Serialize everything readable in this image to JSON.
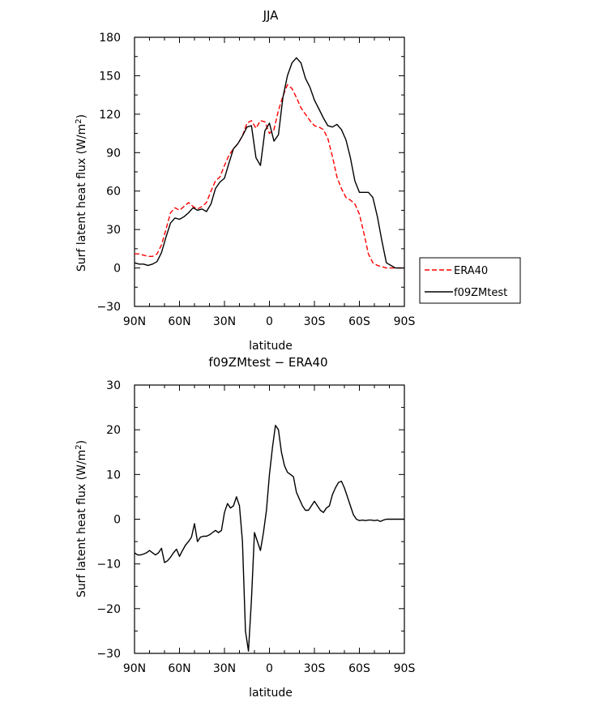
{
  "chart_data": [
    {
      "type": "line",
      "title": "JJA",
      "xlabel": "latitude",
      "ylabel_main": "Surf latent heat flux (W/m",
      "ylabel_sup": "2",
      "ylabel_tail": ")",
      "xlim": [
        90,
        -90
      ],
      "ylim": [
        -30,
        180
      ],
      "xticks": [
        90,
        60,
        30,
        0,
        -30,
        -60,
        -90
      ],
      "xtick_labels": [
        "90N",
        "60N",
        "30N",
        "0",
        "30S",
        "60S",
        "90S"
      ],
      "yticks": [
        -30,
        0,
        30,
        60,
        90,
        120,
        150,
        180
      ],
      "ytick_labels": [
        "−30",
        "0",
        "30",
        "60",
        "90",
        "120",
        "150",
        "180"
      ],
      "legend": {
        "placement": "right",
        "entries": [
          "ERA40",
          "f09ZMtest"
        ]
      },
      "series": [
        {
          "name": "ERA40",
          "color": "#ff0000",
          "dash": "dashed",
          "x": [
            90,
            87,
            84,
            81,
            78,
            75,
            72,
            69,
            66,
            63,
            60,
            57,
            54,
            51,
            48,
            45,
            42,
            39,
            36,
            33,
            30,
            27,
            24,
            21,
            18,
            15,
            12,
            9,
            6,
            3,
            0,
            -3,
            -6,
            -9,
            -12,
            -15,
            -18,
            -21,
            -24,
            -27,
            -30,
            -33,
            -36,
            -39,
            -42,
            -45,
            -48,
            -51,
            -54,
            -57,
            -60,
            -63,
            -66,
            -69,
            -72,
            -75,
            -78,
            -81,
            -84,
            -87,
            -90
          ],
          "y": [
            11,
            11,
            10,
            9,
            9,
            11,
            18,
            30,
            43,
            47,
            45,
            48,
            51,
            48,
            46,
            48,
            51,
            60,
            68,
            71,
            80,
            88,
            93,
            97,
            103,
            113,
            115,
            109,
            115,
            114,
            105,
            108,
            123,
            134,
            143,
            140,
            133,
            125,
            120,
            115,
            111,
            110,
            108,
            101,
            87,
            71,
            62,
            55,
            53,
            50,
            42,
            27,
            11,
            4,
            2,
            1,
            0,
            0,
            0,
            0,
            0
          ]
        },
        {
          "name": "f09ZMtest",
          "color": "#000000",
          "dash": "solid",
          "x": [
            90,
            87,
            84,
            81,
            78,
            75,
            72,
            69,
            66,
            63,
            60,
            57,
            54,
            51,
            48,
            45,
            42,
            39,
            36,
            33,
            30,
            27,
            24,
            21,
            18,
            15,
            12,
            9,
            6,
            3,
            0,
            -3,
            -6,
            -9,
            -12,
            -15,
            -18,
            -21,
            -24,
            -27,
            -30,
            -33,
            -36,
            -39,
            -42,
            -45,
            -48,
            -51,
            -54,
            -57,
            -60,
            -63,
            -66,
            -69,
            -72,
            -75,
            -78,
            -81,
            -84,
            -87,
            -90
          ],
          "y": [
            4,
            3,
            3,
            2,
            3,
            5,
            12,
            24,
            35,
            39,
            38,
            40,
            43,
            47,
            45,
            46,
            44,
            50,
            62,
            67,
            70,
            82,
            93,
            97,
            103,
            110,
            111,
            86,
            80,
            107,
            113,
            99,
            104,
            133,
            150,
            160,
            164,
            160,
            148,
            141,
            131,
            124,
            117,
            111,
            110,
            112,
            108,
            100,
            86,
            68,
            59,
            59,
            59,
            55,
            40,
            21,
            4,
            2,
            0,
            0,
            0
          ]
        }
      ]
    },
    {
      "type": "line",
      "title": "f09ZMtest − ERA40",
      "xlabel": "latitude",
      "ylabel_main": "Surf latent heat flux (W/m",
      "ylabel_sup": "2",
      "ylabel_tail": ")",
      "xlim": [
        90,
        -90
      ],
      "ylim": [
        -30,
        30
      ],
      "xticks": [
        90,
        60,
        30,
        0,
        -30,
        -60,
        -90
      ],
      "xtick_labels": [
        "90N",
        "60N",
        "30N",
        "0",
        "30S",
        "60S",
        "90S"
      ],
      "yticks": [
        -30,
        -20,
        -10,
        0,
        10,
        20,
        30
      ],
      "ytick_labels": [
        "−30",
        "−20",
        "−10",
        "0",
        "10",
        "20",
        "30"
      ],
      "series": [
        {
          "color": "#000000",
          "dash": "solid",
          "x": [
            90,
            88,
            86,
            84,
            82,
            80,
            78,
            76,
            74,
            72,
            70,
            68,
            66,
            64,
            62,
            60,
            58,
            56,
            54,
            52,
            50,
            48,
            46,
            44,
            42,
            40,
            38,
            36,
            34,
            32,
            30,
            28,
            26,
            24,
            22,
            20,
            18,
            16,
            14,
            12,
            10,
            8,
            6,
            4,
            2,
            0,
            -2,
            -4,
            -6,
            -8,
            -10,
            -12,
            -14,
            -16,
            -18,
            -20,
            -22,
            -24,
            -26,
            -28,
            -30,
            -32,
            -34,
            -36,
            -38,
            -40,
            -42,
            -44,
            -46,
            -48,
            -50,
            -52,
            -54,
            -56,
            -58,
            -60,
            -62,
            -64,
            -66,
            -68,
            -70,
            -72,
            -74,
            -76,
            -78,
            -80,
            -82,
            -84,
            -86,
            -88,
            -90
          ],
          "y": [
            -7.5,
            -8,
            -8,
            -7.8,
            -7.5,
            -7,
            -7.5,
            -8,
            -7.5,
            -6.5,
            -9.7,
            -9.3,
            -8.5,
            -7.5,
            -6.7,
            -8.3,
            -7,
            -5.8,
            -5,
            -4,
            -1,
            -5,
            -4,
            -3.8,
            -3.8,
            -3.5,
            -3,
            -2.5,
            -3,
            -2.5,
            1.5,
            3.5,
            2.5,
            3,
            5,
            3,
            -5,
            -25,
            -29.5,
            -18,
            -3,
            -5,
            -7,
            -3,
            2,
            10,
            16,
            21,
            20,
            15,
            12,
            10.5,
            10,
            9.5,
            6,
            4.5,
            3,
            2,
            2,
            3,
            4,
            3,
            2,
            1.5,
            2.5,
            3,
            5.5,
            7,
            8.2,
            8.5,
            7,
            5,
            3,
            1,
            0,
            -0.3,
            -0.2,
            -0.3,
            -0.2,
            -0.2,
            -0.3,
            -0.2,
            -0.5,
            -0.2,
            0,
            0,
            0,
            0,
            0,
            0,
            0
          ]
        }
      ]
    }
  ]
}
